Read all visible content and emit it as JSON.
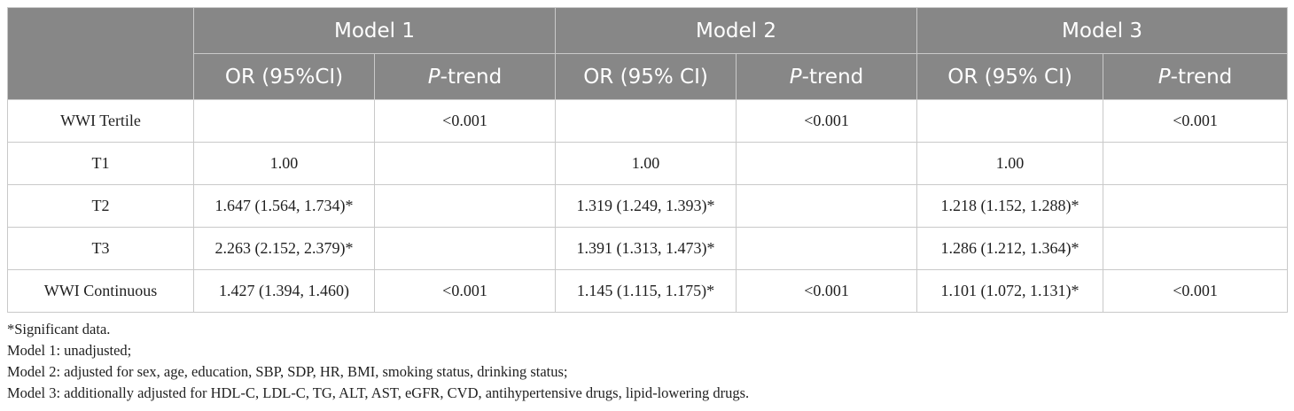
{
  "header": {
    "models": [
      "Model 1",
      "Model 2",
      "Model 3"
    ],
    "subheaders": [
      {
        "or": "OR (95%CI)",
        "p_italic": "P",
        "p_rest": "-trend"
      },
      {
        "or": "OR (95% CI)",
        "p_italic": "P",
        "p_rest": "-trend"
      },
      {
        "or": "OR (95% CI)",
        "p_italic": "P",
        "p_rest": "-trend"
      }
    ]
  },
  "rows": [
    {
      "label": "WWI Tertile",
      "cells": [
        "",
        "<0.001",
        "",
        "<0.001",
        "",
        "<0.001"
      ]
    },
    {
      "label": "T1",
      "cells": [
        "1.00",
        "",
        "1.00",
        "",
        "1.00",
        ""
      ]
    },
    {
      "label": "T2",
      "cells": [
        "1.647 (1.564, 1.734)*",
        "",
        "1.319 (1.249, 1.393)*",
        "",
        "1.218 (1.152, 1.288)*",
        ""
      ]
    },
    {
      "label": "T3",
      "cells": [
        "2.263 (2.152, 2.379)*",
        "",
        "1.391 (1.313, 1.473)*",
        "",
        "1.286 (1.212, 1.364)*",
        ""
      ]
    },
    {
      "label": "WWI Continuous",
      "cells": [
        "1.427 (1.394, 1.460)",
        "<0.001",
        "1.145 (1.115, 1.175)*",
        "<0.001",
        "1.101 (1.072, 1.131)*",
        "<0.001"
      ]
    }
  ],
  "notes": [
    "*Significant data.",
    "Model 1: unadjusted;",
    "Model 2: adjusted for sex, age, education, SBP, SDP, HR, BMI, smoking status, drinking status;",
    "Model 3: additionally adjusted for HDL-C, LDL-C, TG, ALT, AST, eGFR, CVD, antihypertensive drugs, lipid-lowering drugs."
  ],
  "colors": {
    "header_bg": "#878787",
    "header_text": "#ffffff",
    "border": "#c9c9c9",
    "body_text": "#1f1f1f"
  }
}
